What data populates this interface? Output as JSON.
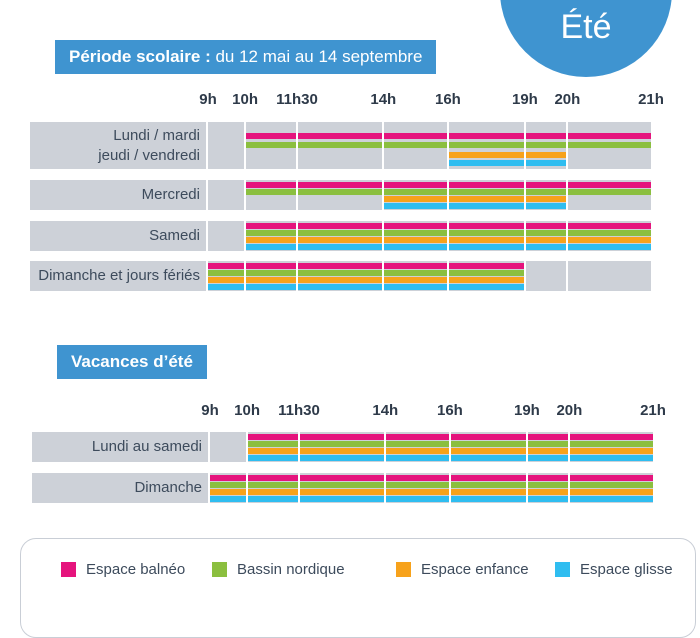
{
  "season": "Été",
  "colors": {
    "balneo": "#e5147d",
    "nordique": "#8bbf3f",
    "enfance": "#f7a21b",
    "glisse": "#2fbdf0"
  },
  "sections": [
    {
      "title_bold": "Période scolaire :",
      "title_rest": " du 12 mai au 14 septembre",
      "hours": [
        "9h",
        "10h",
        "11h30",
        "14h",
        "16h",
        "19h",
        "20h",
        "21h"
      ],
      "rows": [
        {
          "label_lines": [
            "Lundi / mardi",
            "jeudi / vendredi"
          ],
          "bars": [
            {
              "space": "balneo",
              "start": 10,
              "end": 21
            },
            {
              "space": "nordique",
              "start": 10,
              "end": 21
            },
            {
              "space": "enfance",
              "start": 16,
              "end": 20
            },
            {
              "space": "glisse",
              "start": 16,
              "end": 20
            }
          ]
        },
        {
          "label_lines": [
            "Mercredi"
          ],
          "bars": [
            {
              "space": "balneo",
              "start": 10,
              "end": 21
            },
            {
              "space": "nordique",
              "start": 10,
              "end": 21
            },
            {
              "space": "enfance",
              "start": 14,
              "end": 20
            },
            {
              "space": "glisse",
              "start": 14,
              "end": 20
            }
          ]
        },
        {
          "label_lines": [
            "Samedi"
          ],
          "bars": [
            {
              "space": "balneo",
              "start": 10,
              "end": 21
            },
            {
              "space": "nordique",
              "start": 10,
              "end": 21
            },
            {
              "space": "enfance",
              "start": 10,
              "end": 21
            },
            {
              "space": "glisse",
              "start": 10,
              "end": 21
            }
          ]
        },
        {
          "label_lines": [
            "Dimanche et jours fériés"
          ],
          "bars": [
            {
              "space": "balneo",
              "start": 9,
              "end": 19
            },
            {
              "space": "nordique",
              "start": 9,
              "end": 19
            },
            {
              "space": "enfance",
              "start": 9,
              "end": 19
            },
            {
              "space": "glisse",
              "start": 9,
              "end": 19
            }
          ]
        }
      ]
    },
    {
      "title_bold": "Vacances d’été",
      "title_rest": "",
      "hours": [
        "9h",
        "10h",
        "11h30",
        "14h",
        "16h",
        "19h",
        "20h",
        "21h"
      ],
      "rows": [
        {
          "label_lines": [
            "Lundi au samedi"
          ],
          "bars": [
            {
              "space": "balneo",
              "start": 10,
              "end": 21
            },
            {
              "space": "nordique",
              "start": 10,
              "end": 21
            },
            {
              "space": "enfance",
              "start": 10,
              "end": 21
            },
            {
              "space": "glisse",
              "start": 10,
              "end": 21
            }
          ]
        },
        {
          "label_lines": [
            "Dimanche"
          ],
          "bars": [
            {
              "space": "balneo",
              "start": 9,
              "end": 21
            },
            {
              "space": "nordique",
              "start": 9,
              "end": 21
            },
            {
              "space": "enfance",
              "start": 9,
              "end": 21
            },
            {
              "space": "glisse",
              "start": 9,
              "end": 21
            }
          ]
        }
      ]
    }
  ],
  "legend": [
    {
      "space": "balneo",
      "label": "Espace balnéo"
    },
    {
      "space": "nordique",
      "label": "Bassin nordique"
    },
    {
      "space": "enfance",
      "label": "Espace enfance"
    },
    {
      "space": "glisse",
      "label": "Espace glisse"
    }
  ]
}
